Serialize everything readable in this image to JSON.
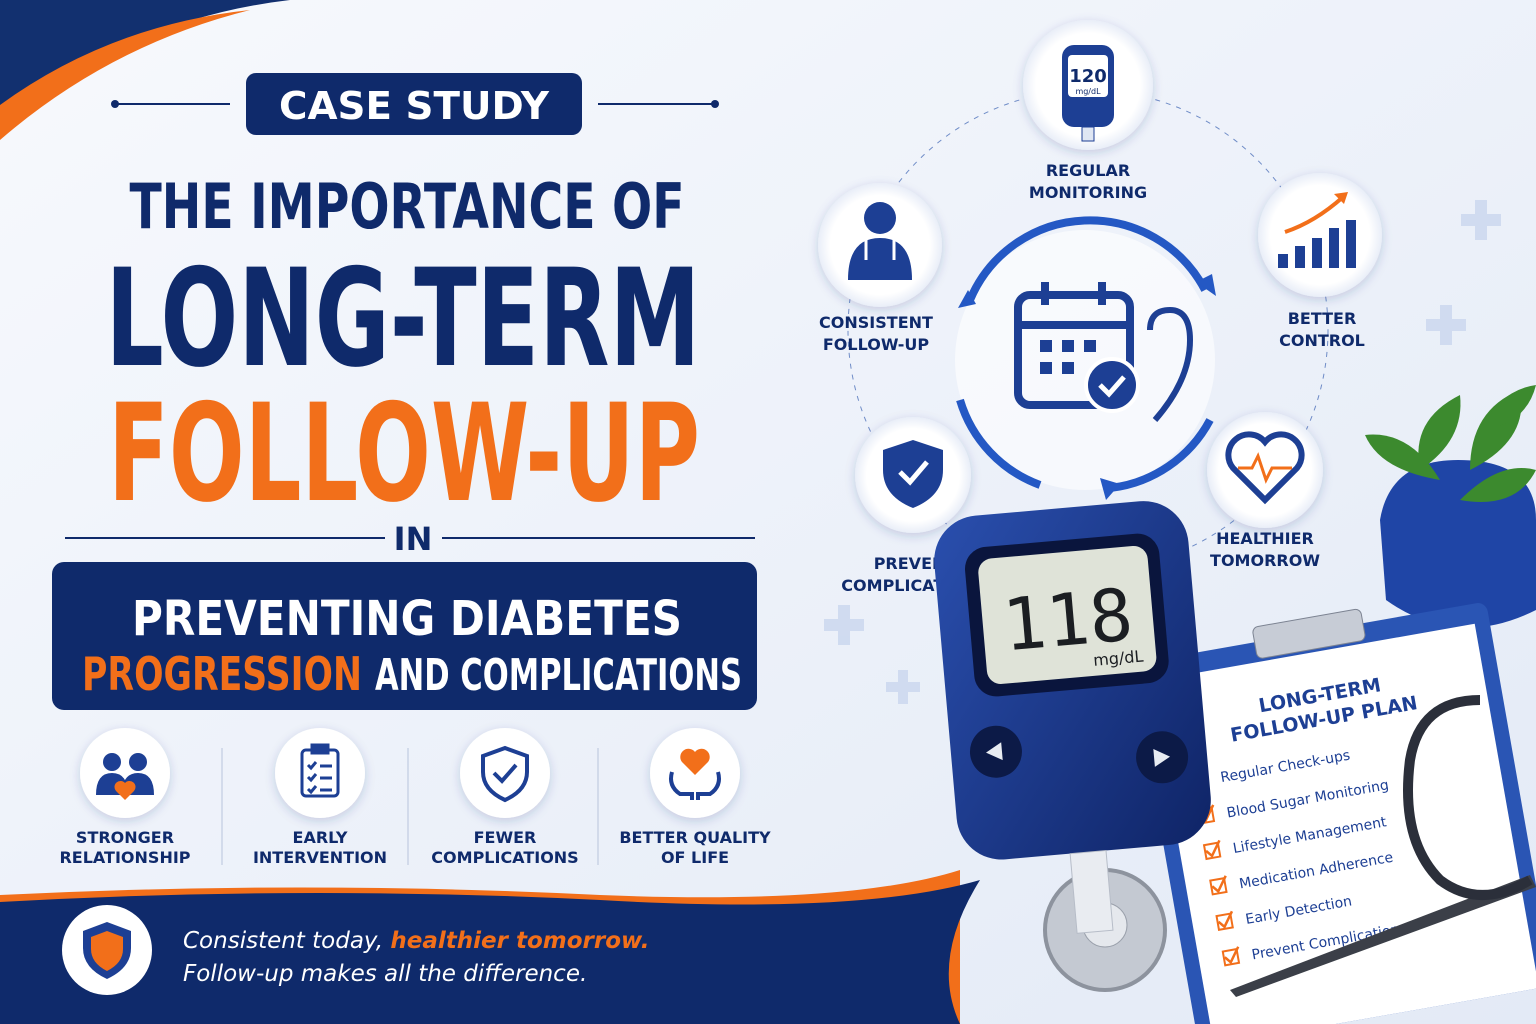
{
  "header": {
    "badge": "CASE STUDY",
    "title_lines": [
      "THE IMPORTANCE OF",
      "LONG-TERM",
      "FOLLOW-UP",
      "IN"
    ],
    "subtitle": {
      "line1": "PREVENTING DIABETES",
      "highlight": "PROGRESSION",
      "rest": "AND COMPLICATIONS"
    }
  },
  "benefits": [
    {
      "lines": [
        "STRONGER",
        "RELATIONSHIP"
      ]
    },
    {
      "lines": [
        "EARLY",
        "INTERVENTION"
      ]
    },
    {
      "lines": [
        "FEWER",
        "COMPLICATIONS"
      ]
    },
    {
      "lines": [
        "BETTER QUALITY",
        "OF LIFE"
      ]
    }
  ],
  "footer": {
    "lead": "Consistent today,",
    "highlight": "healthier tomorrow.",
    "line2": "Follow-up makes all the difference."
  },
  "cycle": [
    {
      "lines": [
        "REGULAR",
        "MONITORING"
      ]
    },
    {
      "lines": [
        "BETTER",
        "CONTROL"
      ]
    },
    {
      "lines": [
        "HEALTHIER",
        "TOMORROW"
      ]
    },
    {
      "lines": [
        "PREVENT",
        "COMPLICATIONS"
      ]
    },
    {
      "lines": [
        "CONSISTENT",
        "FOLLOW-UP"
      ]
    }
  ],
  "small_meter": {
    "reading": "120",
    "unit": "mg/dL"
  },
  "big_meter": {
    "reading": "118",
    "unit": "mg/dL"
  },
  "clipboard": {
    "title_lines": [
      "LONG-TERM",
      "FOLLOW-UP PLAN"
    ],
    "items": [
      "Regular Check-ups",
      "Blood Sugar Monitoring",
      "Lifestyle Management",
      "Medication Adherence",
      "Early Detection",
      "Prevent Complications"
    ]
  }
}
